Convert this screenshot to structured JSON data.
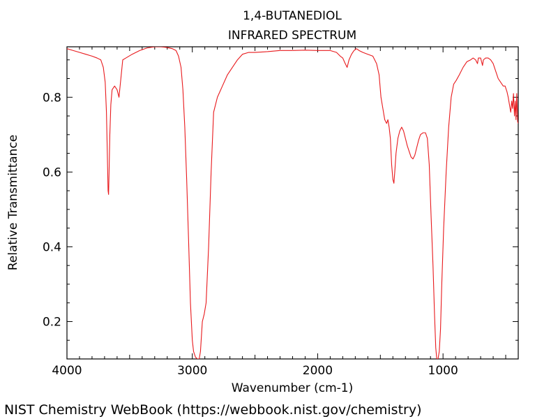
{
  "chart_data": {
    "type": "line",
    "title": "1,4-BUTANEDIOL",
    "subtitle": "INFRARED SPECTRUM",
    "xlabel": "Wavenumber (cm-1)",
    "ylabel": "Relative Transmittance",
    "xlim": [
      4000,
      400
    ],
    "ylim": [
      0.1,
      0.935
    ],
    "x_ticks": [
      {
        "value": 4000,
        "label": "4000"
      },
      {
        "value": 3000,
        "label": "3000"
      },
      {
        "value": 2000,
        "label": "2000"
      },
      {
        "value": 1000,
        "label": "1000"
      }
    ],
    "y_ticks": [
      {
        "value": 0.2,
        "label": "0.2"
      },
      {
        "value": 0.4,
        "label": "0.4"
      },
      {
        "value": 0.6,
        "label": "0.6"
      },
      {
        "value": 0.8,
        "label": "0.8"
      }
    ],
    "series": [
      {
        "name": "1,4-Butanediol IR",
        "color": "#e8191c",
        "points": [
          [
            4000,
            0.93
          ],
          [
            3950,
            0.925
          ],
          [
            3900,
            0.92
          ],
          [
            3850,
            0.915
          ],
          [
            3800,
            0.91
          ],
          [
            3760,
            0.905
          ],
          [
            3730,
            0.9
          ],
          [
            3710,
            0.88
          ],
          [
            3695,
            0.84
          ],
          [
            3685,
            0.76
          ],
          [
            3678,
            0.65
          ],
          [
            3672,
            0.55
          ],
          [
            3668,
            0.54
          ],
          [
            3664,
            0.6
          ],
          [
            3658,
            0.7
          ],
          [
            3650,
            0.78
          ],
          [
            3640,
            0.82
          ],
          [
            3620,
            0.83
          ],
          [
            3600,
            0.82
          ],
          [
            3585,
            0.8
          ],
          [
            3570,
            0.85
          ],
          [
            3555,
            0.9
          ],
          [
            3530,
            0.905
          ],
          [
            3480,
            0.915
          ],
          [
            3420,
            0.925
          ],
          [
            3360,
            0.932
          ],
          [
            3300,
            0.935
          ],
          [
            3250,
            0.935
          ],
          [
            3200,
            0.933
          ],
          [
            3160,
            0.93
          ],
          [
            3130,
            0.925
          ],
          [
            3110,
            0.91
          ],
          [
            3090,
            0.88
          ],
          [
            3075,
            0.82
          ],
          [
            3060,
            0.72
          ],
          [
            3045,
            0.58
          ],
          [
            3030,
            0.42
          ],
          [
            3015,
            0.25
          ],
          [
            3000,
            0.15
          ],
          [
            2990,
            0.12
          ],
          [
            2975,
            0.105
          ],
          [
            2960,
            0.1
          ],
          [
            2945,
            0.1
          ],
          [
            2935,
            0.12
          ],
          [
            2920,
            0.2
          ],
          [
            2905,
            0.22
          ],
          [
            2890,
            0.25
          ],
          [
            2870,
            0.4
          ],
          [
            2850,
            0.6
          ],
          [
            2830,
            0.76
          ],
          [
            2800,
            0.8
          ],
          [
            2760,
            0.83
          ],
          [
            2720,
            0.86
          ],
          [
            2680,
            0.88
          ],
          [
            2640,
            0.9
          ],
          [
            2600,
            0.915
          ],
          [
            2550,
            0.92
          ],
          [
            2500,
            0.92
          ],
          [
            2400,
            0.922
          ],
          [
            2300,
            0.925
          ],
          [
            2200,
            0.925
          ],
          [
            2100,
            0.926
          ],
          [
            2000,
            0.925
          ],
          [
            1900,
            0.925
          ],
          [
            1850,
            0.92
          ],
          [
            1820,
            0.91
          ],
          [
            1800,
            0.905
          ],
          [
            1780,
            0.89
          ],
          [
            1765,
            0.88
          ],
          [
            1750,
            0.9
          ],
          [
            1730,
            0.915
          ],
          [
            1710,
            0.925
          ],
          [
            1690,
            0.93
          ],
          [
            1670,
            0.925
          ],
          [
            1640,
            0.92
          ],
          [
            1600,
            0.915
          ],
          [
            1560,
            0.91
          ],
          [
            1530,
            0.89
          ],
          [
            1510,
            0.86
          ],
          [
            1495,
            0.8
          ],
          [
            1480,
            0.77
          ],
          [
            1465,
            0.74
          ],
          [
            1450,
            0.73
          ],
          [
            1440,
            0.74
          ],
          [
            1430,
            0.72
          ],
          [
            1420,
            0.69
          ],
          [
            1410,
            0.62
          ],
          [
            1400,
            0.58
          ],
          [
            1392,
            0.57
          ],
          [
            1385,
            0.6
          ],
          [
            1375,
            0.65
          ],
          [
            1360,
            0.69
          ],
          [
            1345,
            0.71
          ],
          [
            1330,
            0.72
          ],
          [
            1315,
            0.71
          ],
          [
            1300,
            0.69
          ],
          [
            1285,
            0.67
          ],
          [
            1270,
            0.655
          ],
          [
            1255,
            0.64
          ],
          [
            1240,
            0.635
          ],
          [
            1225,
            0.645
          ],
          [
            1210,
            0.665
          ],
          [
            1195,
            0.685
          ],
          [
            1180,
            0.7
          ],
          [
            1160,
            0.705
          ],
          [
            1140,
            0.705
          ],
          [
            1125,
            0.69
          ],
          [
            1110,
            0.62
          ],
          [
            1095,
            0.48
          ],
          [
            1080,
            0.35
          ],
          [
            1068,
            0.22
          ],
          [
            1058,
            0.13
          ],
          [
            1050,
            0.1
          ],
          [
            1040,
            0.1
          ],
          [
            1030,
            0.12
          ],
          [
            1020,
            0.18
          ],
          [
            1010,
            0.3
          ],
          [
            995,
            0.45
          ],
          [
            975,
            0.6
          ],
          [
            955,
            0.72
          ],
          [
            935,
            0.8
          ],
          [
            915,
            0.835
          ],
          [
            895,
            0.845
          ],
          [
            870,
            0.86
          ],
          [
            840,
            0.88
          ],
          [
            810,
            0.895
          ],
          [
            780,
            0.9
          ],
          [
            760,
            0.905
          ],
          [
            740,
            0.9
          ],
          [
            725,
            0.89
          ],
          [
            718,
            0.905
          ],
          [
            700,
            0.905
          ],
          [
            685,
            0.885
          ],
          [
            678,
            0.9
          ],
          [
            660,
            0.905
          ],
          [
            640,
            0.905
          ],
          [
            620,
            0.9
          ],
          [
            600,
            0.89
          ],
          [
            580,
            0.87
          ],
          [
            560,
            0.85
          ],
          [
            540,
            0.84
          ],
          [
            520,
            0.83
          ],
          [
            505,
            0.83
          ],
          [
            490,
            0.815
          ],
          [
            480,
            0.8
          ],
          [
            470,
            0.78
          ],
          [
            460,
            0.76
          ],
          [
            452,
            0.79
          ],
          [
            445,
            0.77
          ],
          [
            438,
            0.81
          ],
          [
            430,
            0.75
          ],
          [
            424,
            0.79
          ],
          [
            418,
            0.74
          ],
          [
            412,
            0.81
          ],
          [
            405,
            0.735
          ],
          [
            400,
            0.73
          ]
        ]
      }
    ]
  },
  "footer": {
    "text": "NIST Chemistry WebBook (https://webbook.nist.gov/chemistry)"
  }
}
